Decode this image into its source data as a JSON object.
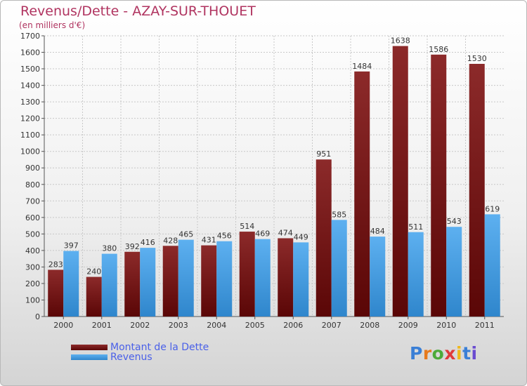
{
  "title": "Revenus/Dette - AZAY-SUR-THOUET",
  "subtitle": "(en milliers d'€)",
  "brand": {
    "text": "Proxiti"
  },
  "colors": {
    "debt": "#7a1c1c",
    "revenue": "#4a9fe0",
    "title": "#b03460",
    "legend_text": "#4a60e8"
  },
  "chart_data": {
    "type": "bar",
    "title": "Revenus/Dette - AZAY-SUR-THOUET",
    "ylabel": "(en milliers d'€)",
    "xlabel": "",
    "ylim": [
      0,
      1700
    ],
    "ytick_step": 100,
    "grid": true,
    "legend_position": "bottom-left",
    "categories": [
      "2000",
      "2001",
      "2002",
      "2003",
      "2004",
      "2005",
      "2006",
      "2007",
      "2008",
      "2009",
      "2010",
      "2011"
    ],
    "series": [
      {
        "name": "Montant de la Dette",
        "values": [
          283,
          240,
          392,
          428,
          431,
          514,
          474,
          951,
          1484,
          1638,
          1586,
          1530
        ]
      },
      {
        "name": "Revenus",
        "values": [
          397,
          380,
          416,
          465,
          456,
          469,
          449,
          585,
          484,
          511,
          543,
          619
        ]
      }
    ]
  }
}
